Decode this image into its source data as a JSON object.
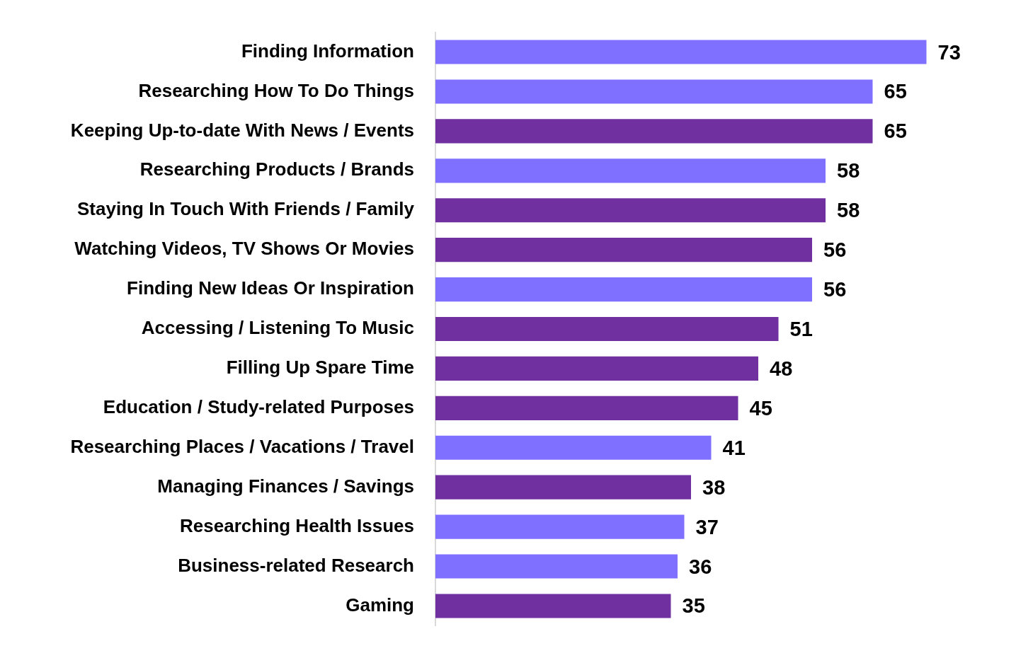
{
  "chart_data": {
    "type": "bar",
    "orientation": "horizontal",
    "categories": [
      "Finding Information",
      "Researching How To Do Things",
      "Keeping Up-to-date With News / Events",
      "Researching Products / Brands",
      "Staying In Touch With Friends / Family",
      "Watching Videos, TV Shows Or Movies",
      "Finding New Ideas Or Inspiration",
      "Accessing / Listening To Music",
      "Filling Up Spare Time",
      "Education / Study-related Purposes",
      "Researching Places / Vacations / Travel",
      "Managing Finances / Savings",
      "Researching Health Issues",
      "Business-related Research",
      "Gaming"
    ],
    "values": [
      73,
      65,
      65,
      58,
      58,
      56,
      56,
      51,
      48,
      45,
      41,
      38,
      37,
      36,
      35
    ],
    "colors": [
      "#8070ff",
      "#8070ff",
      "#7030a0",
      "#8070ff",
      "#7030a0",
      "#7030a0",
      "#8070ff",
      "#7030a0",
      "#7030a0",
      "#7030a0",
      "#8070ff",
      "#7030a0",
      "#8070ff",
      "#8070ff",
      "#7030a0"
    ],
    "tick_labels": "y",
    "legend": false,
    "data_labels": true
  }
}
